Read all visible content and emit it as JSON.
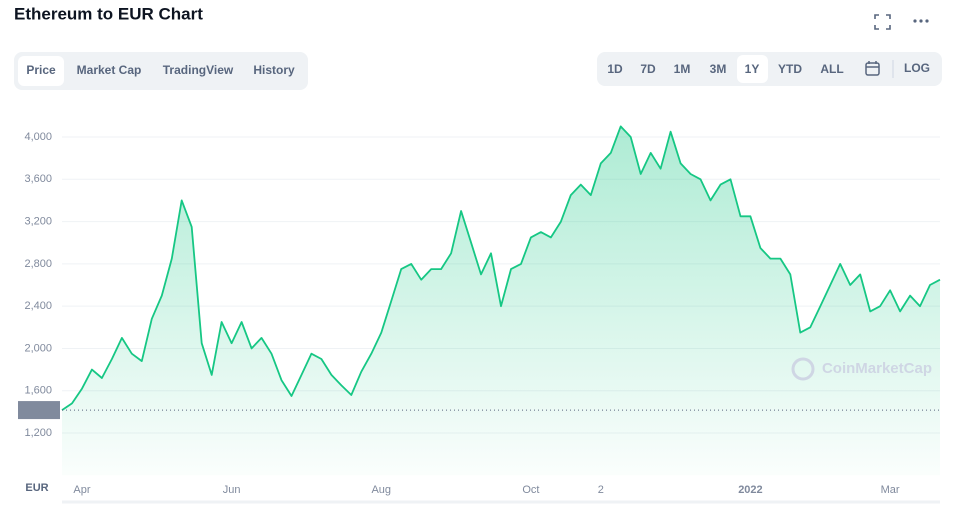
{
  "header": {
    "title": "Ethereum to EUR Chart"
  },
  "tabs": [
    "Price",
    "Market Cap",
    "TradingView",
    "History"
  ],
  "range_buttons": [
    "1D",
    "7D",
    "1M",
    "3M",
    "1Y",
    "YTD",
    "ALL"
  ],
  "log_button": "LOG",
  "watermark": "CoinMarketCap",
  "chart_data": {
    "type": "area",
    "y_label": "EUR",
    "color": "#16c784",
    "grid": true,
    "ylim": [
      800,
      4350
    ],
    "yticks": [
      {
        "value": 1200,
        "label": "1,200"
      },
      {
        "value": 1600,
        "label": "1,600"
      },
      {
        "value": 2000,
        "label": "2,000"
      },
      {
        "value": 2400,
        "label": "2,400"
      },
      {
        "value": 2800,
        "label": "2,800"
      },
      {
        "value": 3200,
        "label": "3,200"
      },
      {
        "value": 3600,
        "label": "3,600"
      },
      {
        "value": 4000,
        "label": "4,000"
      }
    ],
    "start_price": {
      "value": 1417,
      "label": "1,417"
    },
    "categories": [
      null,
      null,
      "Apr",
      null,
      null,
      null,
      null,
      null,
      null,
      null,
      null,
      null,
      null,
      null,
      null,
      null,
      null,
      "Jun",
      null,
      null,
      null,
      null,
      null,
      null,
      null,
      null,
      null,
      null,
      null,
      null,
      null,
      null,
      "Aug",
      null,
      null,
      null,
      null,
      null,
      null,
      null,
      null,
      null,
      null,
      null,
      null,
      null,
      null,
      "Oct",
      null,
      null,
      null,
      null,
      null,
      null,
      "2",
      null,
      null,
      null,
      null,
      null,
      null,
      null,
      null,
      null,
      null,
      null,
      null,
      null,
      null,
      "2022",
      null,
      null,
      null,
      null,
      null,
      null,
      null,
      null,
      null,
      null,
      null,
      null,
      null,
      "Mar",
      null,
      null,
      null,
      null,
      null
    ],
    "values": [
      1417,
      1480,
      1620,
      1800,
      1720,
      1900,
      2100,
      1950,
      1880,
      2280,
      2500,
      2850,
      3400,
      3150,
      2050,
      1750,
      2250,
      2050,
      2250,
      2000,
      2100,
      1950,
      1700,
      1550,
      1750,
      1950,
      1900,
      1750,
      1650,
      1560,
      1780,
      1950,
      2150,
      2450,
      2750,
      2800,
      2650,
      2750,
      2750,
      2900,
      3300,
      3000,
      2700,
      2900,
      2400,
      2750,
      2800,
      3050,
      3100,
      3050,
      3200,
      3450,
      3550,
      3450,
      3750,
      3850,
      4100,
      4000,
      3650,
      3850,
      3700,
      4050,
      3750,
      3650,
      3600,
      3400,
      3550,
      3600,
      3250,
      3250,
      2950,
      2850,
      2850,
      2700,
      2150,
      2200,
      2400,
      2600,
      2800,
      2600,
      2700,
      2350,
      2400,
      2550,
      2350,
      2500,
      2400,
      2600,
      2650
    ]
  }
}
